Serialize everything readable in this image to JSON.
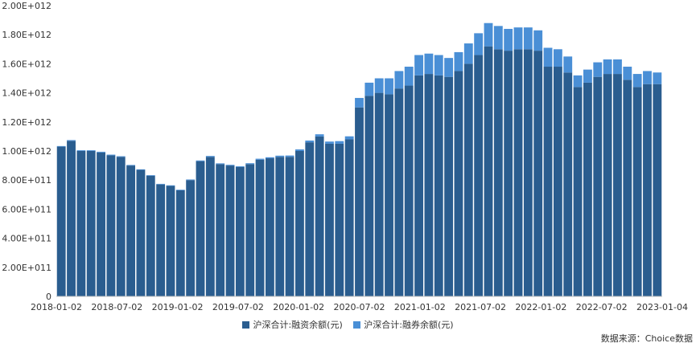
{
  "chart_data": {
    "type": "bar",
    "stacked": true,
    "x_tick_labels": [
      "2018-01-02",
      "2018-07-02",
      "2019-01-02",
      "2019-07-02",
      "2020-01-02",
      "2020-07-02",
      "2021-01-02",
      "2021-07-02",
      "2022-01-02",
      "2022-07-02",
      "2023-01-04"
    ],
    "y_tick_labels": [
      "0",
      "2.00E+011",
      "4.00E+011",
      "6.00E+011",
      "8.00E+011",
      "1.00E+012",
      "1.20E+012",
      "1.40E+012",
      "1.60E+012",
      "1.80E+012",
      "2.00E+012"
    ],
    "ylim": [
      0,
      2000000000000
    ],
    "colors": {
      "financing": "#2a5d8f",
      "securities_lending": "#4a8fd6"
    },
    "x": [
      "2018-01-02",
      "2018-02-01",
      "2018-03-01",
      "2018-04-02",
      "2018-05-02",
      "2018-06-01",
      "2018-07-02",
      "2018-08-01",
      "2018-09-03",
      "2018-10-08",
      "2018-11-01",
      "2018-12-03",
      "2019-01-02",
      "2019-02-01",
      "2019-03-01",
      "2019-04-01",
      "2019-05-06",
      "2019-06-03",
      "2019-07-02",
      "2019-08-01",
      "2019-09-02",
      "2019-10-08",
      "2019-11-01",
      "2019-12-02",
      "2020-01-02",
      "2020-02-03",
      "2020-03-02",
      "2020-04-01",
      "2020-05-06",
      "2020-06-01",
      "2020-07-02",
      "2020-08-03",
      "2020-09-01",
      "2020-10-09",
      "2020-11-02",
      "2020-12-01",
      "2021-01-04",
      "2021-02-01",
      "2021-03-01",
      "2021-04-01",
      "2021-05-06",
      "2021-06-01",
      "2021-07-01",
      "2021-08-02",
      "2021-09-01",
      "2021-10-08",
      "2021-11-01",
      "2021-12-01",
      "2022-01-04",
      "2022-02-07",
      "2022-03-01",
      "2022-04-01",
      "2022-05-05",
      "2022-06-01",
      "2022-07-01",
      "2022-08-01",
      "2022-09-01",
      "2022-10-10",
      "2022-11-01",
      "2022-12-01",
      "2023-01-04"
    ],
    "series": [
      {
        "name": "沪深合计:融资余额(元)",
        "values": [
          1030000000000.0,
          1070000000000.0,
          1000000000000.0,
          1000000000000.0,
          990000000000.0,
          970000000000.0,
          960000000000.0,
          900000000000.0,
          870000000000.0,
          830000000000.0,
          770000000000.0,
          760000000000.0,
          730000000000.0,
          800000000000.0,
          930000000000.0,
          960000000000.0,
          910000000000.0,
          900000000000.0,
          890000000000.0,
          910000000000.0,
          940000000000.0,
          950000000000.0,
          960000000000.0,
          960000000000.0,
          1000000000000.0,
          1060000000000.0,
          1100000000000.0,
          1050000000000.0,
          1050000000000.0,
          1080000000000.0,
          1300000000000.0,
          1380000000000.0,
          1400000000000.0,
          1390000000000.0,
          1430000000000.0,
          1450000000000.0,
          1520000000000.0,
          1530000000000.0,
          1520000000000.0,
          1510000000000.0,
          1550000000000.0,
          1600000000000.0,
          1660000000000.0,
          1720000000000.0,
          1700000000000.0,
          1690000000000.0,
          1700000000000.0,
          1700000000000.0,
          1690000000000.0,
          1580000000000.0,
          1580000000000.0,
          1540000000000.0,
          1440000000000.0,
          1470000000000.0,
          1510000000000.0,
          1530000000000.0,
          1530000000000.0,
          1490000000000.0,
          1440000000000.0,
          1460000000000.0,
          1460000000000.0
        ]
      },
      {
        "name": "沪深合计:融券余额(元)",
        "values": [
          4000000000.0,
          5000000000.0,
          5000000000.0,
          5000000000.0,
          5000000000.0,
          5000000000.0,
          4000000000.0,
          4000000000.0,
          4000000000.0,
          4000000000.0,
          4000000000.0,
          4000000000.0,
          4000000000.0,
          4000000000.0,
          5000000000.0,
          6000000000.0,
          5000000000.0,
          5000000000.0,
          5000000000.0,
          6000000000.0,
          7000000000.0,
          7000000000.0,
          8000000000.0,
          9000000000.0,
          11000000000.0,
          12000000000.0,
          15000000000.0,
          15000000000.0,
          18000000000.0,
          21000000000.0,
          65000000000.0,
          90000000000.0,
          100000000000.0,
          110000000000.0,
          120000000000.0,
          130000000000.0,
          140000000000.0,
          140000000000.0,
          140000000000.0,
          130000000000.0,
          130000000000.0,
          140000000000.0,
          150000000000.0,
          160000000000.0,
          160000000000.0,
          150000000000.0,
          150000000000.0,
          150000000000.0,
          140000000000.0,
          130000000000.0,
          120000000000.0,
          110000000000.0,
          80000000000.0,
          90000000000.0,
          100000000000.0,
          100000000000.0,
          100000000000.0,
          90000000000.0,
          90000000000.0,
          90000000000.0,
          80000000000.0
        ]
      }
    ]
  },
  "legend": {
    "financing_label": "沪深合计:融资余额(元)",
    "lending_label": "沪深合计:融券余额(元)"
  },
  "source_text": "数据来源：Choice数据"
}
